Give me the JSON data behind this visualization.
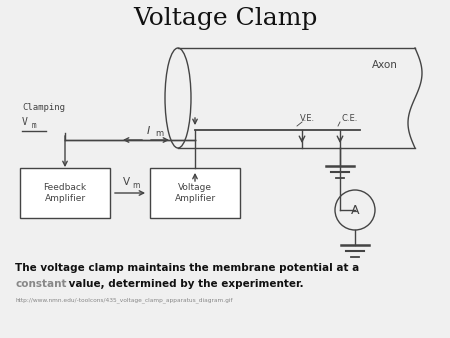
{
  "title": "Voltage Clamp",
  "title_fontsize": 18,
  "bg_color": "#f0f0f0",
  "axon_label": "Axon",
  "clamping_line1": "Clamping",
  "clamping_line2": "V",
  "clamping_sub": "m",
  "im_label": "I",
  "im_sub": "m",
  "feedback_label": "Feedback\nAmplifier",
  "voltage_amp_label": "Voltage\nAmplifier",
  "vm_label": "V",
  "vm_sub": "m",
  "ve_label": "V.E.",
  "ce_label": "C.E.",
  "ammeter_label": "A",
  "caption_line1": "The voltage clamp maintains the membrane potential at a",
  "caption_line2_rest": " value, determined by the experimenter.",
  "caption_line2_gray": "constant",
  "url_text": "http://www.nmn.edu/-toolcons/435_voltage_clamp_apparatus_diagram.gif",
  "line_color": "#444444",
  "box_color": "#ffffff",
  "gray_color": "#888888"
}
